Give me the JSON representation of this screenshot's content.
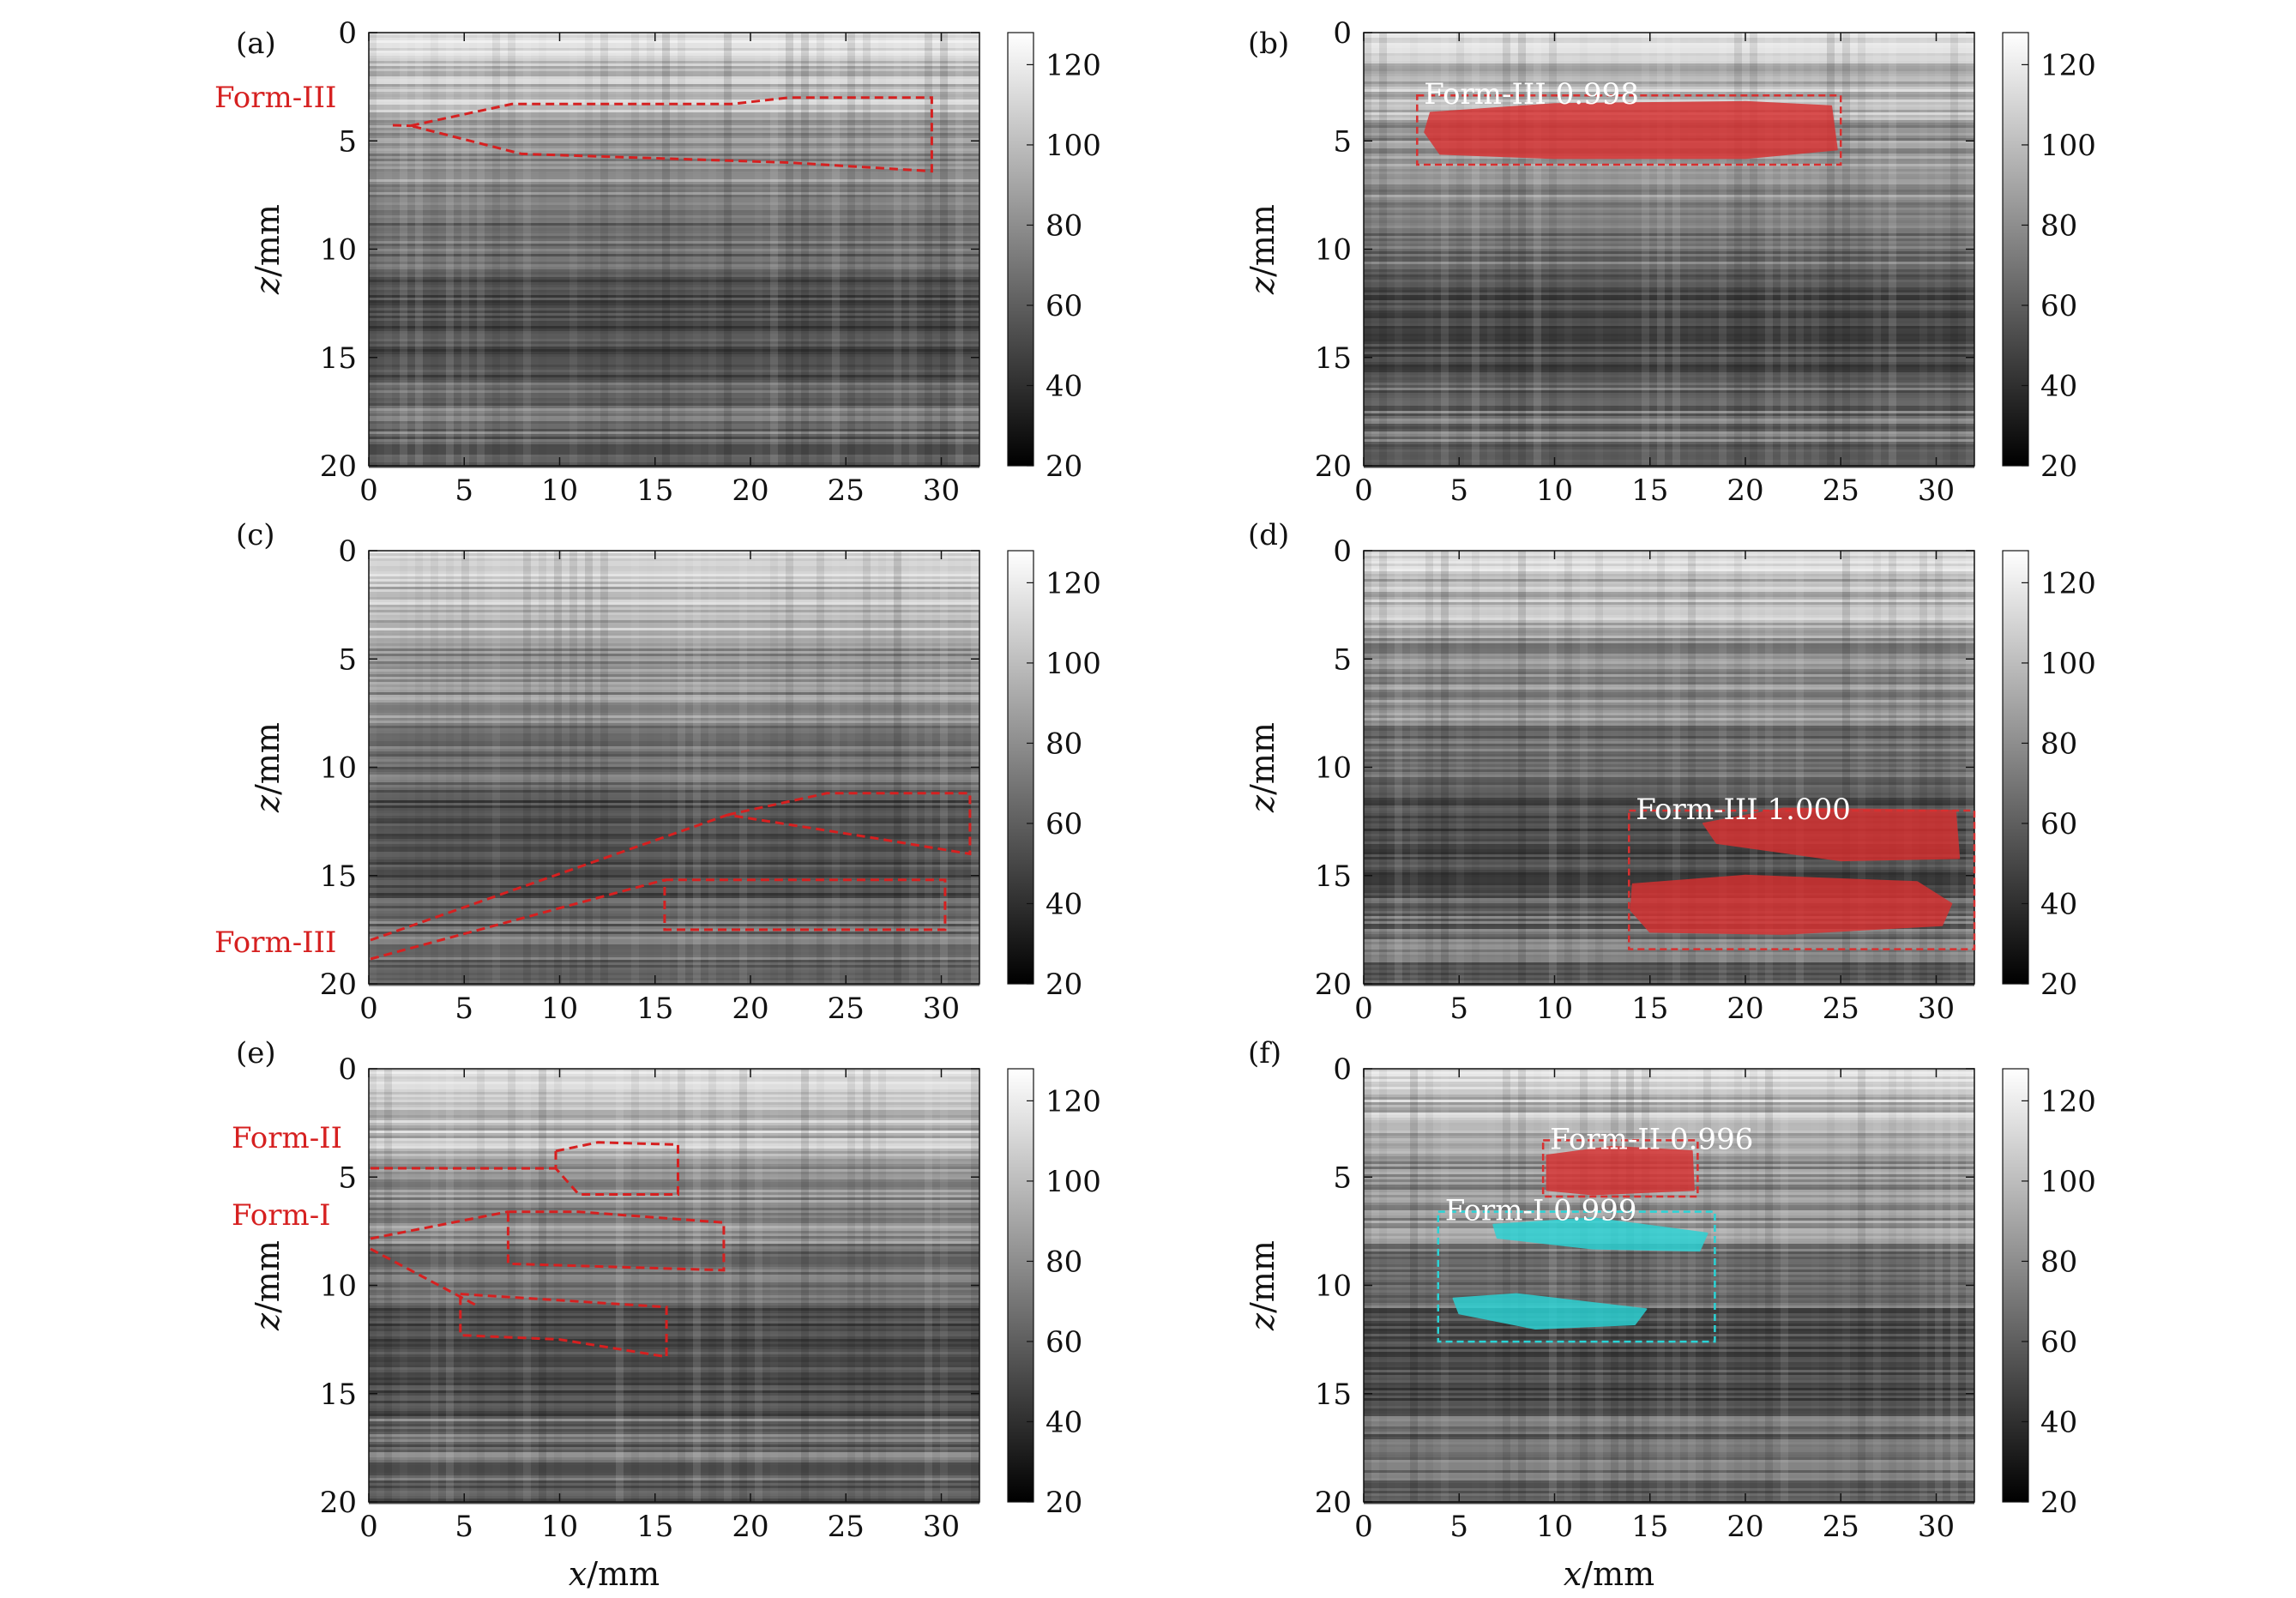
{
  "figure": {
    "colorbar": {
      "ticks": [
        20,
        40,
        60,
        80,
        100,
        120
      ],
      "range": [
        20,
        128
      ],
      "colormap": "gray"
    },
    "colors": {
      "form_annotation": "#d62020",
      "form_fill_red": "#d83030",
      "form_fill_cyan": "#2ad4d6"
    },
    "x_ticks": [
      0,
      5,
      10,
      15,
      20,
      25,
      30
    ],
    "y_ticks": [
      0,
      5,
      10,
      15,
      20
    ],
    "x_range": [
      0,
      32
    ],
    "y_range": [
      0,
      20
    ]
  },
  "chart_data": [
    {
      "id": "a",
      "type": "heatmap",
      "panel_label": "(a)",
      "xlabel": "",
      "ylabel": "z/mm",
      "annotations": [
        {
          "label": "Form-III",
          "polygon": [
            [
              2.2,
              4.3
            ],
            [
              7.5,
              3.3
            ],
            [
              19,
              3.3
            ],
            [
              22,
              3.0
            ],
            [
              29.5,
              3.0
            ],
            [
              29.5,
              6.4
            ],
            [
              22,
              6.0
            ],
            [
              8,
              5.6
            ],
            [
              2.2,
              4.3
            ]
          ]
        }
      ],
      "detections": []
    },
    {
      "id": "b",
      "type": "heatmap",
      "panel_label": "(b)",
      "xlabel": "",
      "ylabel": "z/mm",
      "annotations": [],
      "detections": [
        {
          "label": "Form-III 0.998",
          "class": "Form-III",
          "score": 0.998,
          "color": "red",
          "box": [
            2.8,
            2.9,
            25.0,
            6.1
          ],
          "masks": [
            [
              [
                3.5,
                3.7
              ],
              [
                10,
                3.3
              ],
              [
                20,
                3.2
              ],
              [
                24.5,
                3.4
              ],
              [
                24.8,
                5.4
              ],
              [
                20,
                5.8
              ],
              [
                10,
                5.8
              ],
              [
                4,
                5.6
              ],
              [
                3.2,
                4.6
              ]
            ]
          ]
        }
      ]
    },
    {
      "id": "c",
      "type": "heatmap",
      "panel_label": "(c)",
      "xlabel": "",
      "ylabel": "z/mm",
      "annotations": [
        {
          "label": "Form-III",
          "polygon": [
            [
              18.8,
              12.2
            ],
            [
              24,
              11.2
            ],
            [
              31.5,
              11.2
            ],
            [
              31.5,
              14.0
            ],
            [
              26,
              13.2
            ],
            [
              18.8,
              12.2
            ]
          ]
        },
        {
          "label": "Form-III",
          "polygon": [
            [
              15.5,
              15.2
            ],
            [
              30.2,
              15.2
            ],
            [
              30.2,
              17.5
            ],
            [
              15.5,
              17.5
            ],
            [
              15.5,
              15.2
            ]
          ]
        }
      ],
      "detections": []
    },
    {
      "id": "d",
      "type": "heatmap",
      "panel_label": "(d)",
      "xlabel": "",
      "ylabel": "z/mm",
      "annotations": [],
      "detections": [
        {
          "label": "Form-III 1.000",
          "class": "Form-III",
          "score": 1.0,
          "color": "red",
          "box": [
            13.9,
            12.0,
            32.0,
            18.4
          ],
          "masks": [
            [
              [
                17.8,
                12.6
              ],
              [
                22,
                11.9
              ],
              [
                31,
                12.0
              ],
              [
                31.2,
                14.2
              ],
              [
                25,
                14.3
              ],
              [
                18.5,
                13.5
              ]
            ],
            [
              [
                14.1,
                15.4
              ],
              [
                20,
                15.0
              ],
              [
                29,
                15.3
              ],
              [
                30.8,
                16.3
              ],
              [
                30.3,
                17.3
              ],
              [
                22,
                17.7
              ],
              [
                15,
                17.6
              ],
              [
                14.0,
                16.6
              ]
            ]
          ]
        }
      ]
    },
    {
      "id": "e",
      "type": "heatmap",
      "panel_label": "(e)",
      "xlabel": "x/mm",
      "ylabel": "z/mm",
      "annotations": [
        {
          "label": "Form-II",
          "polygon": [
            [
              9.8,
              3.8
            ],
            [
              12,
              3.4
            ],
            [
              16.2,
              3.5
            ],
            [
              16.2,
              5.8
            ],
            [
              11,
              5.8
            ],
            [
              9.8,
              4.6
            ],
            [
              9.8,
              3.8
            ]
          ]
        },
        {
          "label": "Form-I",
          "polygon": [
            [
              7.3,
              6.6
            ],
            [
              11,
              6.6
            ],
            [
              18.6,
              7.1
            ],
            [
              18.6,
              9.3
            ],
            [
              7.3,
              9.0
            ],
            [
              7.3,
              6.6
            ]
          ]
        },
        {
          "label": "Form-I",
          "polygon": [
            [
              4.8,
              10.4
            ],
            [
              15.6,
              11.0
            ],
            [
              15.6,
              13.3
            ],
            [
              10,
              12.5
            ],
            [
              4.8,
              12.3
            ],
            [
              4.8,
              10.4
            ]
          ]
        }
      ],
      "detections": []
    },
    {
      "id": "f",
      "type": "heatmap",
      "panel_label": "(f)",
      "xlabel": "x/mm",
      "ylabel": "z/mm",
      "annotations": [],
      "detections": [
        {
          "label": "Form-II 0.996",
          "class": "Form-II",
          "score": 0.996,
          "color": "red",
          "box": [
            9.4,
            3.3,
            17.5,
            5.9
          ],
          "masks": [
            [
              [
                9.6,
                4.0
              ],
              [
                13,
                3.6
              ],
              [
                17.2,
                3.8
              ],
              [
                17.3,
                5.6
              ],
              [
                12,
                5.8
              ],
              [
                9.6,
                5.6
              ]
            ]
          ]
        },
        {
          "label": "Form-I 0.999",
          "class": "Form-I",
          "score": 0.999,
          "color": "cyan",
          "box": [
            3.9,
            6.6,
            18.4,
            12.6
          ],
          "masks": [
            [
              [
                6.8,
                7.2
              ],
              [
                12,
                6.9
              ],
              [
                18.0,
                7.6
              ],
              [
                17.6,
                8.4
              ],
              [
                12,
                8.3
              ],
              [
                7,
                7.8
              ]
            ],
            [
              [
                4.7,
                10.6
              ],
              [
                8,
                10.4
              ],
              [
                14.8,
                11.1
              ],
              [
                14.2,
                11.8
              ],
              [
                9,
                12.0
              ],
              [
                5,
                11.3
              ]
            ]
          ]
        }
      ]
    }
  ]
}
